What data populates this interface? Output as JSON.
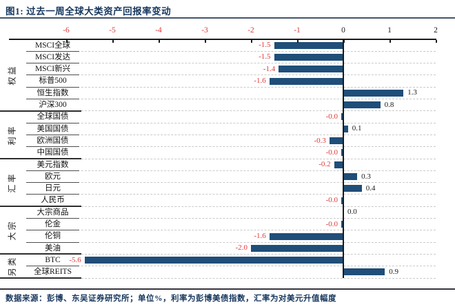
{
  "title": "图1:  过去一周全球大类资产回报率变动",
  "footer": "数据来源：彭博、东吴证券研究所；单位%，利率为彭博美债指数，汇率为对美元升值幅度",
  "colors": {
    "navy": "#17375E",
    "bar": "#1F4E79",
    "negative": "#E03A3A",
    "positive": "#1a1a1a",
    "grid": "#c9c9c9",
    "axis": "#1a1a1a",
    "row_line": "#4d4d4d",
    "group_line": "#2d2d2d"
  },
  "chart_data": {
    "type": "bar",
    "orientation": "horizontal",
    "title": "过去一周全球大类资产回报率变动",
    "unit": "%",
    "xlim": [
      -7.2,
      2
    ],
    "x_ticks": [
      -6,
      -5,
      -4,
      -3,
      -2,
      -1,
      0,
      1,
      2
    ],
    "grid": "dashed-horizontal",
    "groups": [
      {
        "name": "权益",
        "items": [
          {
            "label": "MSCI全球",
            "value": -1.5,
            "display": "-1.5"
          },
          {
            "label": "MSCI发达",
            "value": -1.5,
            "display": "-1.5"
          },
          {
            "label": "MSCI新兴",
            "value": -1.4,
            "display": "-1.4"
          },
          {
            "label": "标普500",
            "value": -1.6,
            "display": "-1.6"
          },
          {
            "label": "恒生指数",
            "value": 1.3,
            "display": "1.3"
          },
          {
            "label": "沪深300",
            "value": 0.8,
            "display": "0.8"
          }
        ]
      },
      {
        "name": "利率",
        "items": [
          {
            "label": "全球国债",
            "value": -0.0,
            "display": "-0.0"
          },
          {
            "label": "美国国债",
            "value": 0.1,
            "display": "0.1"
          },
          {
            "label": "欧洲国债",
            "value": -0.3,
            "display": "-0.3"
          },
          {
            "label": "中国国债",
            "value": -0.0,
            "display": "-0.0"
          }
        ]
      },
      {
        "name": "汇率",
        "items": [
          {
            "label": "美元指数",
            "value": -0.2,
            "display": "-0.2"
          },
          {
            "label": "欧元",
            "value": 0.3,
            "display": "0.3"
          },
          {
            "label": "日元",
            "value": 0.4,
            "display": "0.4"
          },
          {
            "label": "人民币",
            "value": -0.0,
            "display": "-0.0"
          }
        ]
      },
      {
        "name": "大宗",
        "items": [
          {
            "label": "大宗商品",
            "value": 0.0,
            "display": "0.0"
          },
          {
            "label": "伦金",
            "value": -0.0,
            "display": "-0.0"
          },
          {
            "label": "伦铜",
            "value": -1.6,
            "display": "-1.6"
          },
          {
            "label": "美油",
            "value": -2.0,
            "display": "-2.0"
          }
        ]
      },
      {
        "name": "另类",
        "items": [
          {
            "label": "BTC",
            "value": -5.6,
            "display": "-5.6"
          },
          {
            "label": "全球REITS",
            "value": 0.9,
            "display": "0.9"
          }
        ]
      }
    ]
  }
}
